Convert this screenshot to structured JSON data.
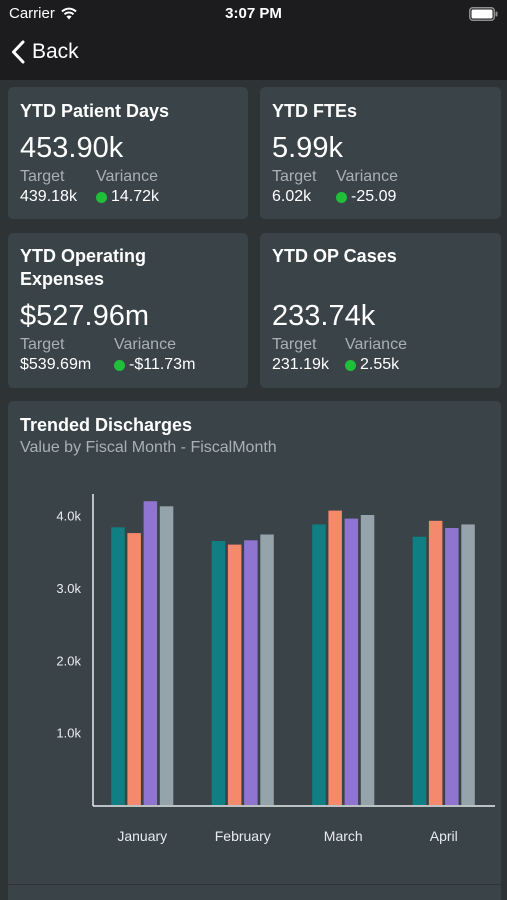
{
  "status_bar": {
    "carrier": "Carrier",
    "time": "3:07 PM"
  },
  "nav": {
    "back_label": "Back"
  },
  "kpis": [
    {
      "title": "YTD Patient Days",
      "value": "453.90k",
      "target_label": "Target",
      "target": "439.18k",
      "variance_label": "Variance",
      "variance": "14.72k",
      "status_color": "#1fbf3a"
    },
    {
      "title": "YTD FTEs",
      "value": "5.99k",
      "target_label": "Target",
      "target": "6.02k",
      "variance_label": "Variance",
      "variance": "-25.09",
      "status_color": "#1fbf3a"
    },
    {
      "title": "YTD Operating Expenses",
      "value": "$527.96m",
      "target_label": "Target",
      "target": "$539.69m",
      "variance_label": "Variance",
      "variance": "-$11.73m",
      "status_color": "#1fbf3a"
    },
    {
      "title": "YTD OP Cases",
      "value": "233.74k",
      "target_label": "Target",
      "target": "231.19k",
      "variance_label": "Variance",
      "variance": "2.55k",
      "status_color": "#1fbf3a"
    }
  ],
  "chart_card": {
    "title": "Trended Discharges",
    "subtitle": "Value by Fiscal Month - FiscalMonth"
  },
  "chart_data": {
    "type": "bar",
    "title": "Trended Discharges",
    "subtitle": "Value by Fiscal Month - FiscalMonth",
    "categories": [
      "January",
      "February",
      "March",
      "April"
    ],
    "series": [
      {
        "values": [
          3840,
          3650,
          3880,
          3710
        ],
        "color": "#0f7f83"
      },
      {
        "values": [
          3760,
          3600,
          4070,
          3930
        ],
        "color": "#f5896b"
      },
      {
        "values": [
          4200,
          3660,
          3960,
          3830
        ],
        "color": "#8f74d0"
      },
      {
        "values": [
          4130,
          3740,
          4010,
          3880
        ],
        "color": "#95a3aa"
      }
    ],
    "y_ticks": [
      {
        "value": 1000,
        "label": "1.0k"
      },
      {
        "value": 2000,
        "label": "2.0k"
      },
      {
        "value": 3000,
        "label": "3.0k"
      },
      {
        "value": 4000,
        "label": "4.0k"
      }
    ],
    "ylim": [
      0,
      4300
    ],
    "grid": false,
    "legend": "none"
  }
}
